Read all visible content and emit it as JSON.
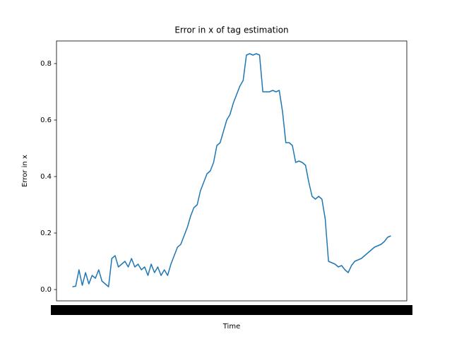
{
  "chart_data": {
    "type": "line",
    "title": "Error in x of tag estimation",
    "x_label": "Time",
    "y_label": "Error in x",
    "series": [
      {
        "color": "#1f77b4",
        "values": [
          0.01,
          0.012,
          0.07,
          0.015,
          0.06,
          0.02,
          0.05,
          0.04,
          0.07,
          0.03,
          0.02,
          0.01,
          0.11,
          0.12,
          0.08,
          0.09,
          0.1,
          0.08,
          0.11,
          0.08,
          0.09,
          0.07,
          0.08,
          0.05,
          0.09,
          0.06,
          0.08,
          0.05,
          0.07,
          0.05,
          0.09,
          0.12,
          0.15,
          0.16,
          0.19,
          0.22,
          0.26,
          0.29,
          0.3,
          0.35,
          0.38,
          0.41,
          0.42,
          0.45,
          0.51,
          0.52,
          0.56,
          0.6,
          0.62,
          0.66,
          0.69,
          0.72,
          0.74,
          0.83,
          0.835,
          0.83,
          0.835,
          0.83,
          0.7,
          0.7,
          0.7,
          0.705,
          0.7,
          0.705,
          0.63,
          0.52,
          0.52,
          0.51,
          0.45,
          0.455,
          0.45,
          0.44,
          0.38,
          0.33,
          0.32,
          0.33,
          0.32,
          0.25,
          0.1,
          0.095,
          0.09,
          0.08,
          0.085,
          0.07,
          0.06,
          0.085,
          0.1,
          0.105,
          0.11,
          0.12,
          0.13,
          0.14,
          0.15,
          0.155,
          0.16,
          0.17,
          0.185,
          0.19
        ]
      }
    ],
    "ylim": [
      -0.04,
      0.88
    ],
    "yticks": [
      {
        "value": 0,
        "label": "0.0"
      },
      0.2,
      0.4,
      0.6,
      0.8
    ]
  }
}
